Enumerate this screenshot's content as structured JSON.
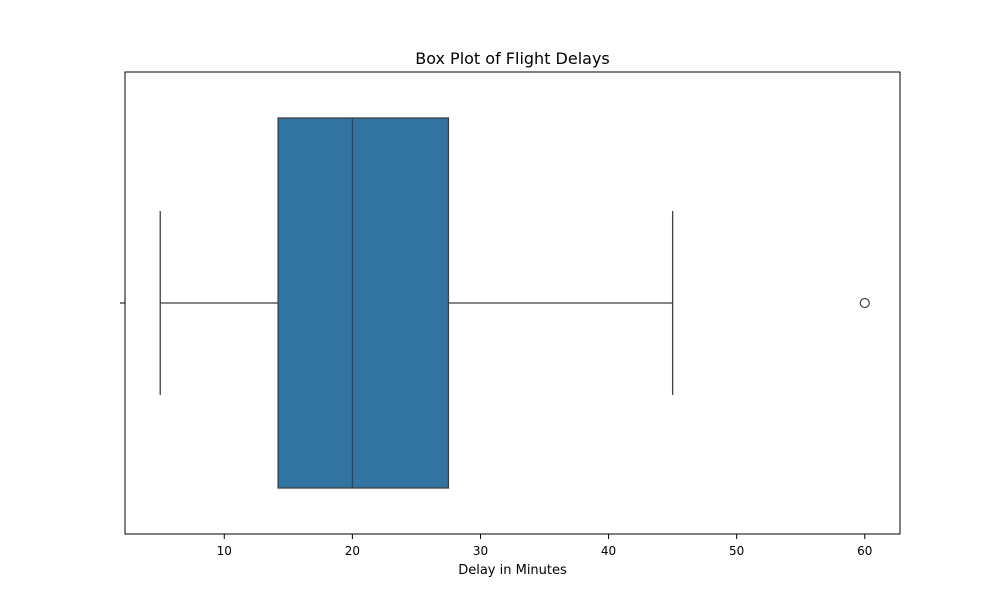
{
  "chart_data": {
    "type": "box",
    "title": "Box Plot of Flight Delays",
    "xlabel": "Delay in Minutes",
    "ylabel": "",
    "orientation": "horizontal",
    "xlim": [
      2.25,
      62.75
    ],
    "xticks": [
      10,
      20,
      30,
      40,
      50,
      60
    ],
    "xtick_labels": [
      "10",
      "20",
      "30",
      "40",
      "50",
      "60"
    ],
    "grid": false,
    "box": {
      "whisker_low": 5,
      "q1": 14.2,
      "median": 20,
      "q3": 27.5,
      "whisker_high": 45,
      "outliers": [
        60
      ]
    },
    "colors": {
      "box_fill": "#3274a1",
      "line": "#3f3f3f",
      "axes": "#000000"
    }
  }
}
